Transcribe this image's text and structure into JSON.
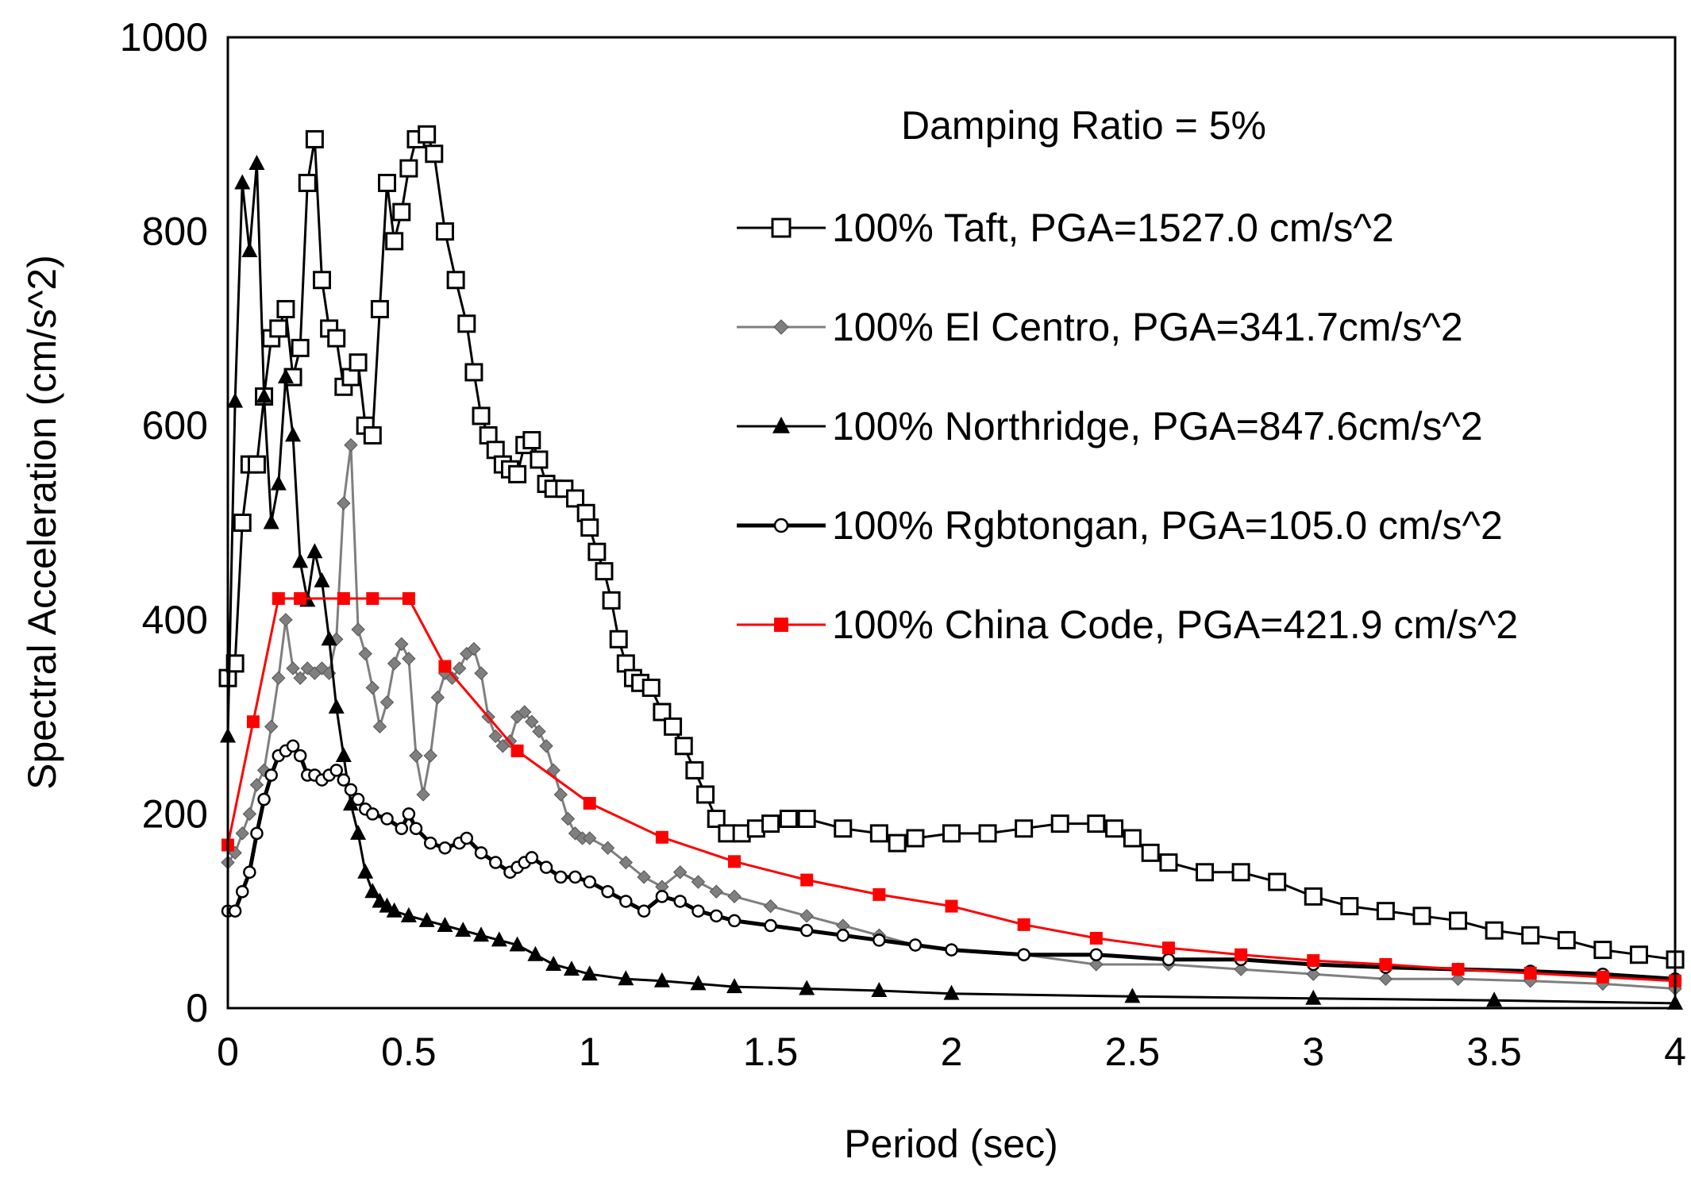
{
  "chart_data": {
    "type": "line",
    "title": "",
    "annotation": "Damping Ratio = 5%",
    "xlabel": "Period (sec)",
    "ylabel": "Spectral Acceleration (cm/s^2)",
    "xlim": [
      0,
      4
    ],
    "ylim": [
      0,
      1000
    ],
    "xticks": [
      0,
      0.5,
      1,
      1.5,
      2,
      2.5,
      3,
      3.5,
      4
    ],
    "xtick_labels": [
      "0",
      "0.5",
      "1",
      "1.5",
      "2",
      "2.5",
      "3",
      "3.5",
      "4"
    ],
    "yticks": [
      0,
      200,
      400,
      600,
      800,
      1000
    ],
    "ytick_labels": [
      "0",
      "200",
      "400",
      "600",
      "800",
      "1000"
    ],
    "grid": false,
    "legend_position": "top-right",
    "series": [
      {
        "name": "100% Taft, PGA=1527.0 cm/s^2",
        "color": "#000000",
        "marker": "square-open",
        "x": [
          0,
          0.02,
          0.04,
          0.06,
          0.08,
          0.1,
          0.12,
          0.14,
          0.16,
          0.18,
          0.2,
          0.22,
          0.24,
          0.26,
          0.28,
          0.3,
          0.32,
          0.34,
          0.36,
          0.38,
          0.4,
          0.42,
          0.44,
          0.46,
          0.48,
          0.5,
          0.52,
          0.55,
          0.57,
          0.6,
          0.63,
          0.66,
          0.68,
          0.7,
          0.72,
          0.74,
          0.76,
          0.78,
          0.8,
          0.82,
          0.84,
          0.86,
          0.88,
          0.9,
          0.93,
          0.96,
          0.99,
          1.0,
          1.02,
          1.04,
          1.06,
          1.08,
          1.1,
          1.12,
          1.14,
          1.17,
          1.2,
          1.23,
          1.26,
          1.29,
          1.32,
          1.35,
          1.38,
          1.42,
          1.46,
          1.5,
          1.55,
          1.6,
          1.7,
          1.8,
          1.85,
          1.9,
          2.0,
          2.1,
          2.2,
          2.3,
          2.4,
          2.45,
          2.5,
          2.55,
          2.6,
          2.7,
          2.8,
          2.9,
          3.0,
          3.1,
          3.2,
          3.3,
          3.4,
          3.5,
          3.6,
          3.7,
          3.8,
          3.9,
          4.0
        ],
        "y": [
          340,
          355,
          500,
          560,
          560,
          630,
          690,
          700,
          720,
          650,
          680,
          850,
          895,
          750,
          700,
          690,
          640,
          650,
          665,
          600,
          590,
          720,
          850,
          790,
          820,
          865,
          895,
          900,
          880,
          800,
          750,
          705,
          655,
          610,
          590,
          575,
          560,
          555,
          550,
          580,
          585,
          565,
          540,
          535,
          535,
          525,
          510,
          495,
          470,
          450,
          420,
          380,
          355,
          340,
          335,
          330,
          305,
          290,
          270,
          245,
          220,
          195,
          180,
          180,
          185,
          190,
          195,
          195,
          185,
          180,
          170,
          175,
          180,
          180,
          185,
          190,
          190,
          185,
          175,
          160,
          150,
          140,
          140,
          130,
          115,
          105,
          100,
          95,
          90,
          80,
          75,
          70,
          60,
          55,
          50
        ]
      },
      {
        "name": "100% El Centro, PGA=341.7cm/s^2",
        "color": "#7f7f7f",
        "marker": "diamond",
        "x": [
          0,
          0.02,
          0.04,
          0.06,
          0.08,
          0.1,
          0.12,
          0.14,
          0.16,
          0.18,
          0.2,
          0.22,
          0.24,
          0.26,
          0.28,
          0.3,
          0.32,
          0.34,
          0.36,
          0.38,
          0.4,
          0.42,
          0.44,
          0.46,
          0.48,
          0.5,
          0.52,
          0.54,
          0.56,
          0.58,
          0.6,
          0.62,
          0.64,
          0.66,
          0.68,
          0.7,
          0.72,
          0.74,
          0.76,
          0.78,
          0.8,
          0.82,
          0.84,
          0.86,
          0.88,
          0.9,
          0.92,
          0.94,
          0.96,
          0.98,
          1.0,
          1.05,
          1.1,
          1.15,
          1.2,
          1.25,
          1.3,
          1.35,
          1.4,
          1.5,
          1.6,
          1.7,
          1.8,
          1.9,
          2.0,
          2.2,
          2.4,
          2.6,
          2.8,
          3.0,
          3.2,
          3.4,
          3.6,
          3.8,
          4.0
        ],
        "y": [
          150,
          160,
          180,
          200,
          230,
          245,
          290,
          340,
          400,
          350,
          340,
          350,
          345,
          350,
          345,
          380,
          520,
          580,
          390,
          365,
          330,
          290,
          315,
          355,
          375,
          360,
          260,
          220,
          260,
          320,
          345,
          340,
          350,
          365,
          370,
          345,
          300,
          280,
          270,
          275,
          300,
          305,
          295,
          285,
          270,
          245,
          220,
          195,
          180,
          175,
          175,
          165,
          150,
          135,
          125,
          140,
          130,
          120,
          115,
          105,
          95,
          85,
          75,
          65,
          60,
          55,
          45,
          45,
          40,
          35,
          30,
          30,
          28,
          25,
          20
        ]
      },
      {
        "name": "100% Northridge, PGA=847.6cm/s^2",
        "color": "#000000",
        "marker": "triangle",
        "x": [
          0,
          0.02,
          0.04,
          0.06,
          0.08,
          0.1,
          0.12,
          0.14,
          0.16,
          0.18,
          0.2,
          0.22,
          0.24,
          0.26,
          0.28,
          0.3,
          0.32,
          0.34,
          0.36,
          0.38,
          0.4,
          0.42,
          0.44,
          0.46,
          0.5,
          0.55,
          0.6,
          0.65,
          0.7,
          0.75,
          0.8,
          0.85,
          0.9,
          0.95,
          1.0,
          1.1,
          1.2,
          1.3,
          1.4,
          1.6,
          1.8,
          2.0,
          2.5,
          3.0,
          3.5,
          4.0
        ],
        "y": [
          280,
          625,
          850,
          780,
          870,
          630,
          500,
          540,
          650,
          590,
          460,
          420,
          470,
          440,
          380,
          310,
          260,
          210,
          180,
          140,
          120,
          110,
          105,
          100,
          95,
          90,
          85,
          80,
          75,
          70,
          65,
          55,
          45,
          40,
          35,
          30,
          28,
          25,
          22,
          20,
          18,
          15,
          12,
          10,
          8,
          5
        ]
      },
      {
        "name": "100% Rgbtongan, PGA=105.0 cm/s^2",
        "color": "#000000",
        "marker": "circle-open",
        "x": [
          0,
          0.02,
          0.04,
          0.06,
          0.08,
          0.1,
          0.12,
          0.14,
          0.16,
          0.18,
          0.2,
          0.22,
          0.24,
          0.26,
          0.28,
          0.3,
          0.32,
          0.34,
          0.36,
          0.38,
          0.4,
          0.44,
          0.48,
          0.5,
          0.52,
          0.56,
          0.6,
          0.64,
          0.66,
          0.7,
          0.74,
          0.78,
          0.8,
          0.82,
          0.84,
          0.88,
          0.92,
          0.96,
          1.0,
          1.05,
          1.1,
          1.15,
          1.2,
          1.25,
          1.3,
          1.35,
          1.4,
          1.5,
          1.6,
          1.7,
          1.8,
          1.9,
          2.0,
          2.2,
          2.4,
          2.6,
          2.8,
          3.0,
          3.2,
          3.4,
          3.6,
          3.8,
          4.0
        ],
        "y": [
          100,
          100,
          120,
          140,
          180,
          215,
          240,
          260,
          265,
          270,
          260,
          240,
          240,
          235,
          240,
          245,
          235,
          225,
          215,
          205,
          200,
          195,
          185,
          200,
          185,
          170,
          165,
          170,
          175,
          160,
          150,
          140,
          145,
          150,
          155,
          145,
          135,
          135,
          130,
          120,
          110,
          100,
          115,
          110,
          100,
          95,
          90,
          85,
          80,
          75,
          70,
          65,
          60,
          55,
          55,
          50,
          50,
          45,
          42,
          40,
          38,
          35,
          30
        ]
      },
      {
        "name": "100% China Code, PGA=421.9 cm/s^2",
        "color": "#ff0000",
        "marker": "square-filled",
        "x": [
          0,
          0.07,
          0.14,
          0.2,
          0.32,
          0.4,
          0.5,
          0.6,
          0.8,
          1.0,
          1.2,
          1.4,
          1.6,
          1.8,
          2.0,
          2.2,
          2.4,
          2.6,
          2.8,
          3.0,
          3.2,
          3.4,
          3.6,
          3.8,
          4.0
        ],
        "y": [
          168,
          295,
          421.9,
          421.9,
          421.9,
          421.9,
          421.9,
          352,
          265,
          211,
          176,
          151,
          132,
          117,
          105,
          86,
          72,
          62,
          55,
          49,
          45,
          40,
          36,
          32,
          28
        ]
      }
    ]
  }
}
